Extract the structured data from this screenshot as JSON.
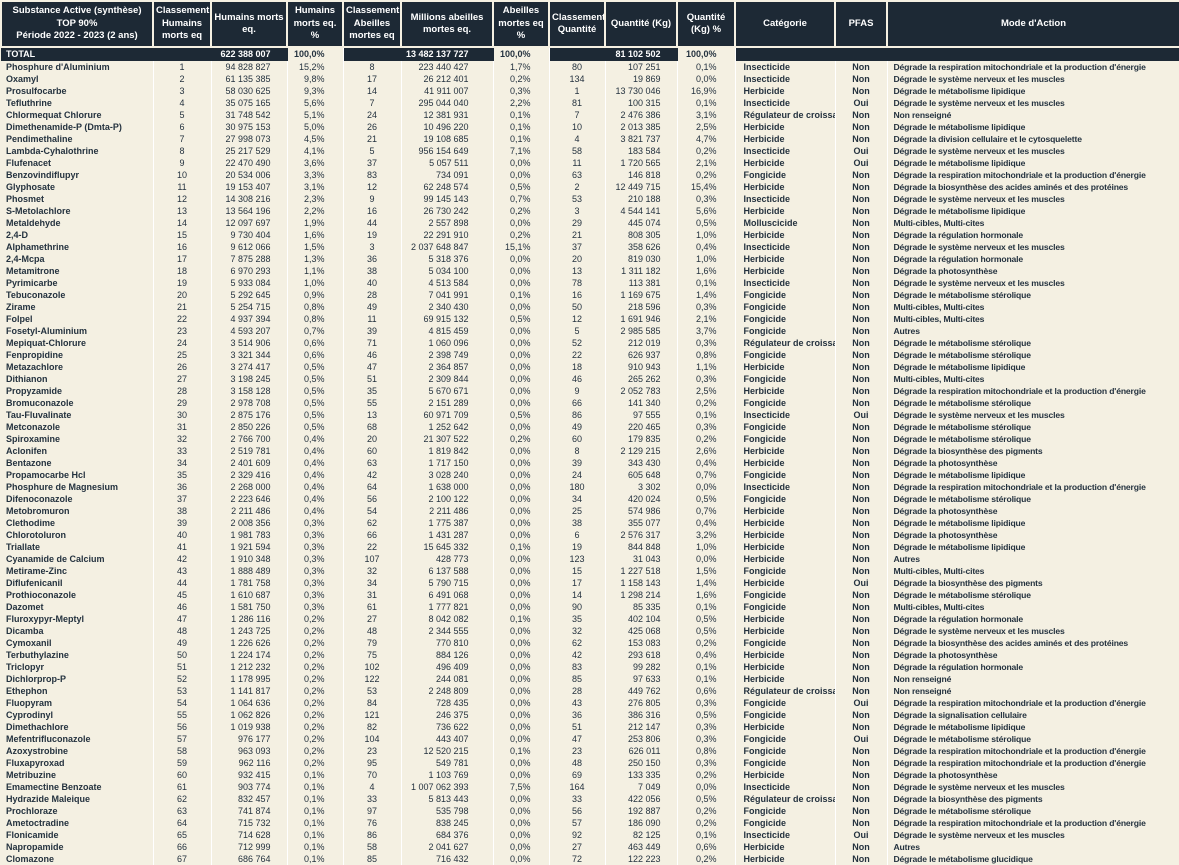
{
  "colors": {
    "header_bg": "#1d2935",
    "body_bg": "#f4f0e2",
    "body_text": "#24323f",
    "header_text": "#ffffff",
    "separator": "#ffffff"
  },
  "chart_data": {
    "type": "table",
    "title": "Substance Active (synthèse) TOP 90% Période 2022 - 2023 (2 ans)",
    "legend_position": "none",
    "grid": "column-separators",
    "columns": [
      "Substance Active (synthèse)\nTOP 90%\nPériode 2022 - 2023 (2 ans)",
      "Classement\nHumains\nmorts eq",
      "Humains morts\neq.",
      "Humains\nmorts eq. %",
      "Classement\nAbeilles\nmortes eq",
      "Millions abeilles\nmortes eq.",
      "Abeilles\nmortes eq %",
      "Classement\nQuantité",
      "Quantité (Kg)",
      "Quantité (Kg) %",
      "Catégorie",
      "PFAS",
      "Mode d'Action"
    ],
    "total_row": [
      "TOTAL",
      "",
      "622 388 007",
      "100,0%",
      "",
      "13 482 137 727",
      "100,0%",
      "",
      "81 102 502",
      "100,0%",
      "",
      "",
      ""
    ],
    "rows": [
      [
        "Phosphure d'Aluminium",
        "1",
        "94 828 827",
        "15,2%",
        "8",
        "223 440 427",
        "1,7%",
        "80",
        "107 251",
        "0,1%",
        "Insecticide",
        "Non",
        "Dégrade la respiration mitochondriale et la production d'énergie"
      ],
      [
        "Oxamyl",
        "2",
        "61 135 385",
        "9,8%",
        "17",
        "26 212 401",
        "0,2%",
        "134",
        "19 869",
        "0,0%",
        "Insecticide",
        "Non",
        "Dégrade le système nerveux et les muscles"
      ],
      [
        "Prosulfocarbe",
        "3",
        "58 030 625",
        "9,3%",
        "14",
        "41 911 007",
        "0,3%",
        "1",
        "13 730 046",
        "16,9%",
        "Herbicide",
        "Non",
        "Dégrade le métabolisme lipidique"
      ],
      [
        "Tefluthrine",
        "4",
        "35 075 165",
        "5,6%",
        "7",
        "295 044 040",
        "2,2%",
        "81",
        "100 315",
        "0,1%",
        "Insecticide",
        "Oui",
        "Dégrade le système nerveux et les muscles"
      ],
      [
        "Chlormequat Chlorure",
        "5",
        "31 748 542",
        "5,1%",
        "24",
        "12 381 931",
        "0,1%",
        "7",
        "2 476 386",
        "3,1%",
        "Régulateur de croissance",
        "Non",
        "Non renseigné"
      ],
      [
        "Dimethenamide-P (Dmta-P)",
        "6",
        "30 975 153",
        "5,0%",
        "26",
        "10 496 220",
        "0,1%",
        "10",
        "2 013 385",
        "2,5%",
        "Herbicide",
        "Non",
        "Dégrade le métabolisme lipidique"
      ],
      [
        "Pendimethaline",
        "7",
        "27 998 073",
        "4,5%",
        "21",
        "19 108 685",
        "0,1%",
        "4",
        "3 821 737",
        "4,7%",
        "Herbicide",
        "Non",
        "Dégrade la division cellulaire et le cytosquelette"
      ],
      [
        "Lambda-Cyhalothrine",
        "8",
        "25 217 529",
        "4,1%",
        "5",
        "956 154 649",
        "7,1%",
        "58",
        "183 584",
        "0,2%",
        "Insecticide",
        "Oui",
        "Dégrade le système nerveux et les muscles"
      ],
      [
        "Flufenacet",
        "9",
        "22 470 490",
        "3,6%",
        "37",
        "5 057 511",
        "0,0%",
        "11",
        "1 720 565",
        "2,1%",
        "Herbicide",
        "Oui",
        "Dégrade le métabolisme lipidique"
      ],
      [
        "Benzovindiflupyr",
        "10",
        "20 534 006",
        "3,3%",
        "83",
        "734 091",
        "0,0%",
        "63",
        "146 818",
        "0,2%",
        "Fongicide",
        "Non",
        "Dégrade la respiration mitochondriale et la production d'énergie"
      ],
      [
        "Glyphosate",
        "11",
        "19 153 407",
        "3,1%",
        "12",
        "62 248 574",
        "0,5%",
        "2",
        "12 449 715",
        "15,4%",
        "Herbicide",
        "Non",
        "Dégrade la biosynthèse des acides aminés et des protéines"
      ],
      [
        "Phosmet",
        "12",
        "14 308 216",
        "2,3%",
        "9",
        "99 145 143",
        "0,7%",
        "53",
        "210 188",
        "0,3%",
        "Insecticide",
        "Non",
        "Dégrade le système nerveux et les muscles"
      ],
      [
        "S-Metolachlore",
        "13",
        "13 564 196",
        "2,2%",
        "16",
        "26 730 242",
        "0,2%",
        "3",
        "4 544 141",
        "5,6%",
        "Herbicide",
        "Non",
        "Dégrade le métabolisme lipidique"
      ],
      [
        "Metaldehyde",
        "14",
        "12 097 697",
        "1,9%",
        "44",
        "2 557 898",
        "0,0%",
        "29",
        "445 074",
        "0,5%",
        "Molluscicide",
        "Non",
        "Multi-cibles, Multi-cites"
      ],
      [
        "2,4-D",
        "15",
        "9 730 404",
        "1,6%",
        "19",
        "22 291 910",
        "0,2%",
        "21",
        "808 305",
        "1,0%",
        "Herbicide",
        "Non",
        "Dégrade la régulation hormonale"
      ],
      [
        "Alphamethrine",
        "16",
        "9 612 066",
        "1,5%",
        "3",
        "2 037 648 847",
        "15,1%",
        "37",
        "358 626",
        "0,4%",
        "Insecticide",
        "Non",
        "Dégrade le système nerveux et les muscles"
      ],
      [
        "2,4-Mcpa",
        "17",
        "7 875 288",
        "1,3%",
        "36",
        "5 318 376",
        "0,0%",
        "20",
        "819 030",
        "1,0%",
        "Herbicide",
        "Non",
        "Dégrade la régulation hormonale"
      ],
      [
        "Metamitrone",
        "18",
        "6 970 293",
        "1,1%",
        "38",
        "5 034 100",
        "0,0%",
        "13",
        "1 311 182",
        "1,6%",
        "Herbicide",
        "Non",
        "Dégrade la photosynthèse"
      ],
      [
        "Pyrimicarbe",
        "19",
        "5 933 084",
        "1,0%",
        "40",
        "4 513 584",
        "0,0%",
        "78",
        "113 381",
        "0,1%",
        "Insecticide",
        "Non",
        "Dégrade le système nerveux et les muscles"
      ],
      [
        "Tebuconazole",
        "20",
        "5 292 645",
        "0,9%",
        "28",
        "7 041 991",
        "0,1%",
        "16",
        "1 169 675",
        "1,4%",
        "Fongicide",
        "Non",
        "Dégrade le métabolisme stérolique"
      ],
      [
        "Zirame",
        "21",
        "5 254 715",
        "0,8%",
        "49",
        "2 340 430",
        "0,0%",
        "50",
        "218 596",
        "0,3%",
        "Fongicide",
        "Non",
        "Multi-cibles, Multi-cites"
      ],
      [
        "Folpel",
        "22",
        "4 937 394",
        "0,8%",
        "11",
        "69 915 132",
        "0,5%",
        "12",
        "1 691 946",
        "2,1%",
        "Fongicide",
        "Non",
        "Multi-cibles, Multi-cites"
      ],
      [
        "Fosetyl-Aluminium",
        "23",
        "4 593 207",
        "0,7%",
        "39",
        "4 815 459",
        "0,0%",
        "5",
        "2 985 585",
        "3,7%",
        "Fongicide",
        "Non",
        "Autres"
      ],
      [
        "Mepiquat-Chlorure",
        "24",
        "3 514 906",
        "0,6%",
        "71",
        "1 060 096",
        "0,0%",
        "52",
        "212 019",
        "0,3%",
        "Régulateur de croissance",
        "Non",
        "Dégrade le métabolisme stérolique"
      ],
      [
        "Fenpropidine",
        "25",
        "3 321 344",
        "0,6%",
        "46",
        "2 398 749",
        "0,0%",
        "22",
        "626 937",
        "0,8%",
        "Fongicide",
        "Non",
        "Dégrade le métabolisme stérolique"
      ],
      [
        "Metazachlore",
        "26",
        "3 274 417",
        "0,5%",
        "47",
        "2 364 857",
        "0,0%",
        "18",
        "910 943",
        "1,1%",
        "Herbicide",
        "Non",
        "Dégrade le métabolisme lipidique"
      ],
      [
        "Dithianon",
        "27",
        "3 198 245",
        "0,5%",
        "51",
        "2 309 844",
        "0,0%",
        "46",
        "265 262",
        "0,3%",
        "Fongicide",
        "Non",
        "Multi-cibles, Multi-cites"
      ],
      [
        "Propyzamide",
        "28",
        "3 158 128",
        "0,5%",
        "35",
        "5 670 671",
        "0,0%",
        "9",
        "2 052 783",
        "2,5%",
        "Herbicide",
        "Non",
        "Dégrade la respiration mitochondriale et la production d'énergie"
      ],
      [
        "Bromuconazole",
        "29",
        "2 978 708",
        "0,5%",
        "55",
        "2 151 289",
        "0,0%",
        "66",
        "141 340",
        "0,2%",
        "Fongicide",
        "Non",
        "Dégrade le métabolisme stérolique"
      ],
      [
        "Tau-Fluvalinate",
        "30",
        "2 875 176",
        "0,5%",
        "13",
        "60 971 709",
        "0,5%",
        "86",
        "97 555",
        "0,1%",
        "Insecticide",
        "Oui",
        "Dégrade le système nerveux et les muscles"
      ],
      [
        "Metconazole",
        "31",
        "2 850 226",
        "0,5%",
        "68",
        "1 252 642",
        "0,0%",
        "49",
        "220 465",
        "0,3%",
        "Fongicide",
        "Non",
        "Dégrade le métabolisme stérolique"
      ],
      [
        "Spiroxamine",
        "32",
        "2 766 700",
        "0,4%",
        "20",
        "21 307 522",
        "0,2%",
        "60",
        "179 835",
        "0,2%",
        "Fongicide",
        "Non",
        "Dégrade le métabolisme stérolique"
      ],
      [
        "Aclonifen",
        "33",
        "2 519 781",
        "0,4%",
        "60",
        "1 819 842",
        "0,0%",
        "8",
        "2 129 215",
        "2,6%",
        "Herbicide",
        "Non",
        "Dégrade la biosynthèse des pigments"
      ],
      [
        "Bentazone",
        "34",
        "2 401 609",
        "0,4%",
        "63",
        "1 717 150",
        "0,0%",
        "39",
        "343 430",
        "0,4%",
        "Herbicide",
        "Non",
        "Dégrade la photosynthèse"
      ],
      [
        "Propamocarbe Hcl",
        "35",
        "2 329 416",
        "0,4%",
        "42",
        "3 028 240",
        "0,0%",
        "24",
        "605 648",
        "0,7%",
        "Fongicide",
        "Non",
        "Dégrade le métabolisme lipidique"
      ],
      [
        "Phosphure de Magnesium",
        "36",
        "2 268 000",
        "0,4%",
        "64",
        "1 638 000",
        "0,0%",
        "180",
        "3 302",
        "0,0%",
        "Insecticide",
        "Non",
        "Dégrade la respiration mitochondriale et la production d'énergie"
      ],
      [
        "Difenoconazole",
        "37",
        "2 223 646",
        "0,4%",
        "56",
        "2 100 122",
        "0,0%",
        "34",
        "420 024",
        "0,5%",
        "Fongicide",
        "Non",
        "Dégrade le métabolisme stérolique"
      ],
      [
        "Metobromuron",
        "38",
        "2 211 486",
        "0,4%",
        "54",
        "2 211 486",
        "0,0%",
        "25",
        "574 986",
        "0,7%",
        "Herbicide",
        "Non",
        "Dégrade la photosynthèse"
      ],
      [
        "Clethodime",
        "39",
        "2 008 356",
        "0,3%",
        "62",
        "1 775 387",
        "0,0%",
        "38",
        "355 077",
        "0,4%",
        "Herbicide",
        "Non",
        "Dégrade le métabolisme lipidique"
      ],
      [
        "Chlorotoluron",
        "40",
        "1 981 783",
        "0,3%",
        "66",
        "1 431 287",
        "0,0%",
        "6",
        "2 576 317",
        "3,2%",
        "Herbicide",
        "Non",
        "Dégrade la photosynthèse"
      ],
      [
        "Triallate",
        "41",
        "1 921 594",
        "0,3%",
        "22",
        "15 645 332",
        "0,1%",
        "19",
        "844 848",
        "1,0%",
        "Herbicide",
        "Non",
        "Dégrade le métabolisme lipidique"
      ],
      [
        "Cyanamide de Calcium",
        "42",
        "1 910 348",
        "0,3%",
        "107",
        "428 773",
        "0,0%",
        "123",
        "31 043",
        "0,0%",
        "Herbicide",
        "Non",
        "Autres"
      ],
      [
        "Metirame-Zinc",
        "43",
        "1 888 489",
        "0,3%",
        "32",
        "6 137 588",
        "0,0%",
        "15",
        "1 227 518",
        "1,5%",
        "Fongicide",
        "Non",
        "Multi-cibles, Multi-cites"
      ],
      [
        "Diflufenicanil",
        "44",
        "1 781 758",
        "0,3%",
        "34",
        "5 790 715",
        "0,0%",
        "17",
        "1 158 143",
        "1,4%",
        "Herbicide",
        "Oui",
        "Dégrade la biosynthèse des pigments"
      ],
      [
        "Prothioconazole",
        "45",
        "1 610 687",
        "0,3%",
        "31",
        "6 491 068",
        "0,0%",
        "14",
        "1 298 214",
        "1,6%",
        "Fongicide",
        "Non",
        "Dégrade le métabolisme stérolique"
      ],
      [
        "Dazomet",
        "46",
        "1 581 750",
        "0,3%",
        "61",
        "1 777 821",
        "0,0%",
        "90",
        "85 335",
        "0,1%",
        "Fongicide",
        "Non",
        "Multi-cibles, Multi-cites"
      ],
      [
        "Fluroxypyr-Meptyl",
        "47",
        "1 286 116",
        "0,2%",
        "27",
        "8 042 082",
        "0,1%",
        "35",
        "402 104",
        "0,5%",
        "Herbicide",
        "Non",
        "Dégrade la régulation hormonale"
      ],
      [
        "Dicamba",
        "48",
        "1 243 725",
        "0,2%",
        "48",
        "2 344 555",
        "0,0%",
        "32",
        "425 068",
        "0,5%",
        "Herbicide",
        "Non",
        "Dégrade le système nerveux et les muscles"
      ],
      [
        "Cymoxanil",
        "49",
        "1 226 626",
        "0,2%",
        "79",
        "770 810",
        "0,0%",
        "62",
        "153 083",
        "0,2%",
        "Fongicide",
        "Non",
        "Dégrade la biosynthèse des acides aminés et des protéines"
      ],
      [
        "Terbuthylazine",
        "50",
        "1 224 174",
        "0,2%",
        "75",
        "884 126",
        "0,0%",
        "42",
        "293 618",
        "0,4%",
        "Herbicide",
        "Non",
        "Dégrade la photosynthèse"
      ],
      [
        "Triclopyr",
        "51",
        "1 212 232",
        "0,2%",
        "102",
        "496 409",
        "0,0%",
        "83",
        "99 282",
        "0,1%",
        "Herbicide",
        "Non",
        "Dégrade la régulation hormonale"
      ],
      [
        "Dichlorprop-P",
        "52",
        "1 178 995",
        "0,2%",
        "122",
        "244 081",
        "0,0%",
        "85",
        "97 633",
        "0,1%",
        "Herbicide",
        "Non",
        "Non renseigné"
      ],
      [
        "Ethephon",
        "53",
        "1 141 817",
        "0,2%",
        "53",
        "2 248 809",
        "0,0%",
        "28",
        "449 762",
        "0,6%",
        "Régulateur de croissance",
        "Non",
        "Non renseigné"
      ],
      [
        "Fluopyram",
        "54",
        "1 064 636",
        "0,2%",
        "84",
        "728 435",
        "0,0%",
        "43",
        "276 805",
        "0,3%",
        "Fongicide",
        "Oui",
        "Dégrade la respiration mitochondriale et la production d'énergie"
      ],
      [
        "Cyprodinyl",
        "55",
        "1 062 826",
        "0,2%",
        "121",
        "246 375",
        "0,0%",
        "36",
        "386 316",
        "0,5%",
        "Fongicide",
        "Non",
        "Dégrade la signalisation cellulaire"
      ],
      [
        "Dimethachlore",
        "56",
        "1 019 938",
        "0,2%",
        "82",
        "736 622",
        "0,0%",
        "51",
        "212 147",
        "0,3%",
        "Herbicide",
        "Non",
        "Dégrade le métabolisme lipidique"
      ],
      [
        "Mefentrifluconazole",
        "57",
        "976 177",
        "0,2%",
        "104",
        "443 407",
        "0,0%",
        "47",
        "253 806",
        "0,3%",
        "Fongicide",
        "Oui",
        "Dégrade le métabolisme stérolique"
      ],
      [
        "Azoxystrobine",
        "58",
        "963 093",
        "0,2%",
        "23",
        "12 520 215",
        "0,1%",
        "23",
        "626 011",
        "0,8%",
        "Fongicide",
        "Non",
        "Dégrade la respiration mitochondriale et la production d'énergie"
      ],
      [
        "Fluxapyroxad",
        "59",
        "962 116",
        "0,2%",
        "95",
        "549 781",
        "0,0%",
        "48",
        "250 150",
        "0,3%",
        "Fongicide",
        "Non",
        "Dégrade la respiration mitochondriale et la production d'énergie"
      ],
      [
        "Metribuzine",
        "60",
        "932 415",
        "0,1%",
        "70",
        "1 103 769",
        "0,0%",
        "69",
        "133 335",
        "0,2%",
        "Herbicide",
        "Non",
        "Dégrade la photosynthèse"
      ],
      [
        "Emamectine Benzoate",
        "61",
        "903 774",
        "0,1%",
        "4",
        "1 007 062 393",
        "7,5%",
        "164",
        "7 049",
        "0,0%",
        "Insecticide",
        "Non",
        "Dégrade le système nerveux et les muscles"
      ],
      [
        "Hydrazide Maleique",
        "62",
        "832 457",
        "0,1%",
        "33",
        "5 813 443",
        "0,0%",
        "33",
        "422 056",
        "0,5%",
        "Régulateur de croissance",
        "Non",
        "Dégrade la biosynthèse des pigments"
      ],
      [
        "Prochloraze",
        "63",
        "741 874",
        "0,1%",
        "97",
        "535 798",
        "0,0%",
        "56",
        "192 887",
        "0,2%",
        "Fongicide",
        "Non",
        "Dégrade le métabolisme stérolique"
      ],
      [
        "Ametoctradine",
        "64",
        "715 732",
        "0,1%",
        "76",
        "838 245",
        "0,0%",
        "57",
        "186 090",
        "0,2%",
        "Fongicide",
        "Non",
        "Dégrade la respiration mitochondriale et la production d'énergie"
      ],
      [
        "Flonicamide",
        "65",
        "714 628",
        "0,1%",
        "86",
        "684 376",
        "0,0%",
        "92",
        "82 125",
        "0,1%",
        "Insecticide",
        "Oui",
        "Dégrade le système nerveux et les muscles"
      ],
      [
        "Napropamide",
        "66",
        "712 999",
        "0,1%",
        "58",
        "2 041 627",
        "0,0%",
        "27",
        "463 449",
        "0,6%",
        "Herbicide",
        "Non",
        "Autres"
      ],
      [
        "Clomazone",
        "67",
        "686 764",
        "0,1%",
        "85",
        "716 432",
        "0,0%",
        "72",
        "122 223",
        "0,2%",
        "Herbicide",
        "Non",
        "Dégrade le métabolisme glucidique"
      ]
    ]
  }
}
